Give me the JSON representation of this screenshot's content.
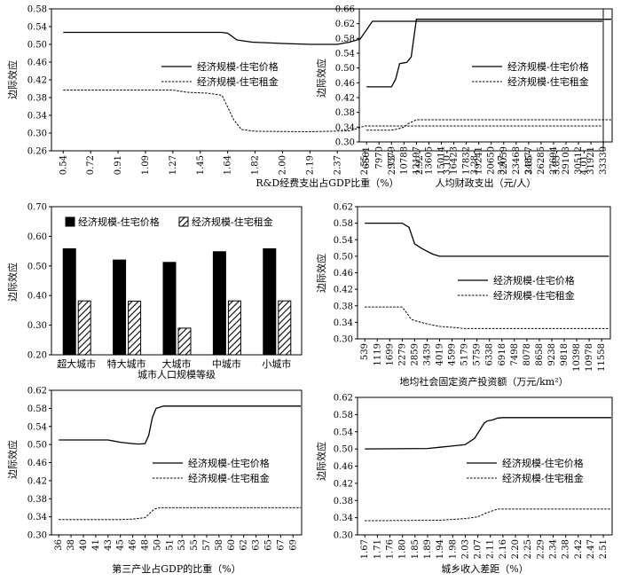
{
  "chart_data": [
    {
      "type": "line",
      "xlabel": "R&D经费支出占GDP比重（%）",
      "ylabel": "边际效应",
      "ylim": [
        0.26,
        0.58
      ],
      "yticks": [
        "0.26",
        "0.30",
        "0.34",
        "0.38",
        "0.42",
        "0.46",
        "0.50",
        "0.54",
        "0.58"
      ],
      "categories": [
        "0.54",
        "0.72",
        "0.91",
        "1.09",
        "1.27",
        "1.45",
        "1.64",
        "1.82",
        "2.00",
        "2.19",
        "2.37",
        "2.55",
        "2.73",
        "2.92",
        "3.10",
        "3.28",
        "3.47",
        "3.65",
        "3.83",
        "4.01"
      ],
      "legend_position": "right",
      "series": [
        {
          "name": "经济规模-住宅价格",
          "style": "solid",
          "x": [
            0.54,
            1.6,
            1.64,
            1.7,
            1.8,
            2.0,
            2.19,
            2.37,
            2.45,
            2.52,
            2.6,
            4.25
          ],
          "y": [
            0.527,
            0.527,
            0.525,
            0.51,
            0.505,
            0.502,
            0.5,
            0.5,
            0.505,
            0.512,
            0.552,
            0.552
          ]
        },
        {
          "name": "经济规模-住宅租金",
          "style": "dashed",
          "x": [
            0.54,
            1.27,
            1.36,
            1.5,
            1.6,
            1.68,
            1.73,
            1.82,
            2.19,
            2.45,
            2.55,
            4.25
          ],
          "y": [
            0.397,
            0.397,
            0.392,
            0.39,
            0.385,
            0.33,
            0.308,
            0.304,
            0.303,
            0.305,
            0.316,
            0.316
          ]
        }
      ]
    },
    {
      "type": "line",
      "xlabel": "人均财政支出（元/人）",
      "ylabel": "边际效应",
      "ylim": [
        0.3,
        0.66
      ],
      "yticks": [
        "0.30",
        "0.34",
        "0.38",
        "0.42",
        "0.46",
        "0.50",
        "0.54",
        "0.58",
        "0.62",
        "0.66"
      ],
      "categories": [
        "6561",
        "7970",
        "9379",
        "10788",
        "12197",
        "13605",
        "15014",
        "16423",
        "17832",
        "19241",
        "20650",
        "22059",
        "23468",
        "24877",
        "26285",
        "27694",
        "29103",
        "30512",
        "31921",
        "33330"
      ],
      "legend_position": "right",
      "series": [
        {
          "name": "经济规模-住宅价格",
          "style": "solid",
          "x": [
            6561,
            9379,
            9850,
            10300,
            10788,
            11100,
            11600,
            12197,
            12500,
            34800
          ],
          "y": [
            0.449,
            0.449,
            0.47,
            0.512,
            0.514,
            0.515,
            0.53,
            0.632,
            0.632,
            0.632
          ]
        },
        {
          "name": "经济规模-住宅租金",
          "style": "dashed",
          "x": [
            6561,
            9379,
            9900,
            10788,
            11300,
            12197,
            12500,
            34800
          ],
          "y": [
            0.332,
            0.332,
            0.334,
            0.34,
            0.35,
            0.36,
            0.36,
            0.36
          ]
        }
      ]
    },
    {
      "type": "bar",
      "xlabel": "城市人口规模等级",
      "ylabel": "边际效应",
      "ylim": [
        0.2,
        0.7
      ],
      "yticks": [
        "0.20",
        "0.30",
        "0.40",
        "0.50",
        "0.60",
        "0.70"
      ],
      "categories": [
        "超大城市",
        "特大城市",
        "大城市",
        "中城市",
        "小城市"
      ],
      "legend_position": "top",
      "series": [
        {
          "name": "经济规模-住宅价格",
          "fill": "#000000",
          "values": [
            0.558,
            0.52,
            0.512,
            0.548,
            0.558
          ]
        },
        {
          "name": "经济规模-住宅租金",
          "fill": "hatch",
          "values": [
            0.382,
            0.381,
            0.29,
            0.382,
            0.382
          ]
        }
      ]
    },
    {
      "type": "line",
      "xlabel": "地均社会固定资产投资额（万元/km²）",
      "ylabel": "边际效应",
      "ylim": [
        0.3,
        0.62
      ],
      "yticks": [
        "0.30",
        "0.34",
        "0.38",
        "0.42",
        "0.46",
        "0.50",
        "0.54",
        "0.58",
        "0.62"
      ],
      "categories": [
        "539",
        "1119",
        "1699",
        "2279",
        "2859",
        "3439",
        "4019",
        "4599",
        "5179",
        "5759",
        "6338",
        "6918",
        "7498",
        "8078",
        "8658",
        "9238",
        "9818",
        "10398",
        "10978",
        "11558"
      ],
      "legend_position": "right",
      "series": [
        {
          "name": "经济规模-住宅价格",
          "style": "solid",
          "x": [
            539,
            2279,
            2600,
            2859,
            3150,
            3439,
            3700,
            4019,
            4599,
            11900
          ],
          "y": [
            0.58,
            0.58,
            0.57,
            0.53,
            0.52,
            0.512,
            0.505,
            0.5,
            0.5,
            0.5
          ]
        },
        {
          "name": "经济规模-住宅租金",
          "style": "dashed",
          "x": [
            539,
            2279,
            2500,
            2700,
            3000,
            3439,
            4019,
            4599,
            5179,
            11900
          ],
          "y": [
            0.377,
            0.377,
            0.362,
            0.347,
            0.342,
            0.336,
            0.33,
            0.328,
            0.325,
            0.325
          ]
        }
      ]
    },
    {
      "type": "line",
      "xlabel": "第三产业占GDP的比重（%）",
      "ylabel": "边际效应",
      "ylim": [
        0.3,
        0.62
      ],
      "yticks": [
        "0.30",
        "0.34",
        "0.38",
        "0.42",
        "0.46",
        "0.50",
        "0.54",
        "0.58",
        "0.62"
      ],
      "categories": [
        "36",
        "38",
        "40",
        "41",
        "43",
        "45",
        "46",
        "48",
        "50",
        "51",
        "53",
        "55",
        "57",
        "58",
        "60",
        "62",
        "63",
        "65",
        "67",
        "69"
      ],
      "legend_position": "right",
      "series": [
        {
          "name": "经济规模-住宅价格",
          "style": "solid",
          "x": [
            36,
            43,
            45,
            46,
            47,
            48,
            48.6,
            49.2,
            49.8,
            50.5,
            51,
            70.5
          ],
          "y": [
            0.51,
            0.51,
            0.505,
            0.502,
            0.501,
            0.502,
            0.52,
            0.56,
            0.58,
            0.585,
            0.585,
            0.585
          ]
        },
        {
          "name": "经济规模-住宅租金",
          "style": "dashed",
          "x": [
            36,
            45,
            46,
            48,
            48.8,
            49.5,
            50.2,
            70.5
          ],
          "y": [
            0.334,
            0.334,
            0.335,
            0.338,
            0.348,
            0.357,
            0.36,
            0.36
          ]
        }
      ]
    },
    {
      "type": "line",
      "xlabel": "城乡收入差距（%）",
      "ylabel": "边际效应",
      "ylim": [
        0.3,
        0.62
      ],
      "yticks": [
        "0.30",
        "0.34",
        "0.38",
        "0.42",
        "0.46",
        "0.50",
        "0.54",
        "0.58",
        "0.62"
      ],
      "categories": [
        "1.67",
        "1.71",
        "1.76",
        "1.80",
        "1.85",
        "1.89",
        "1.94",
        "1.98",
        "2.03",
        "2.07",
        "2.11",
        "2.16",
        "2.20",
        "2.25",
        "2.29",
        "2.34",
        "2.38",
        "2.42",
        "2.47",
        "2.51"
      ],
      "legend_position": "right",
      "series": [
        {
          "name": "经济规模-住宅价格",
          "style": "solid",
          "x": [
            1.67,
            1.89,
            1.94,
            2.03,
            2.06,
            2.09,
            2.1,
            2.12,
            2.14,
            2.16,
            2.55
          ],
          "y": [
            0.5,
            0.501,
            0.504,
            0.51,
            0.525,
            0.56,
            0.565,
            0.568,
            0.572,
            0.573,
            0.573
          ]
        },
        {
          "name": "经济规模-住宅租金",
          "style": "dashed",
          "x": [
            1.67,
            1.94,
            2.03,
            2.07,
            2.1,
            2.14,
            2.55
          ],
          "y": [
            0.333,
            0.334,
            0.338,
            0.342,
            0.352,
            0.36,
            0.36
          ]
        }
      ]
    }
  ]
}
